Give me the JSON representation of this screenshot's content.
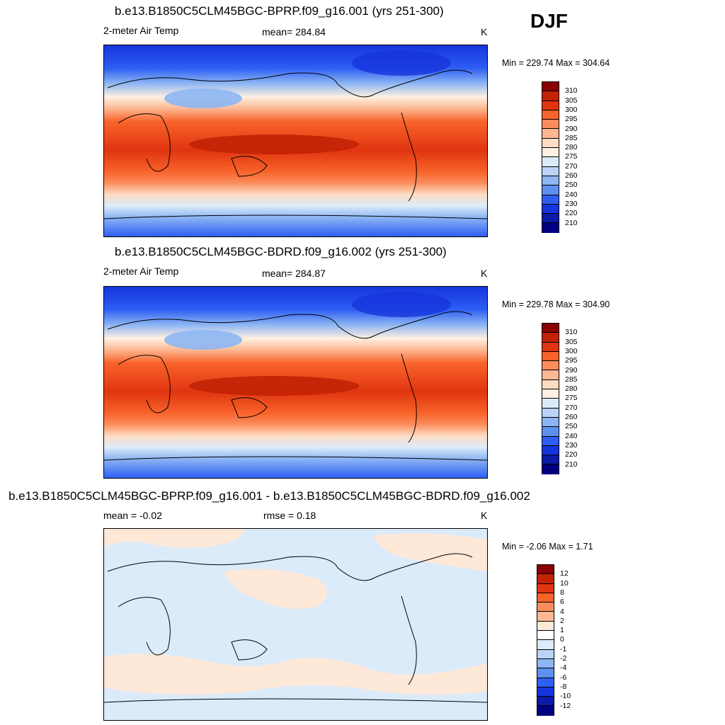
{
  "season": "DJF",
  "colors": {
    "abs": [
      "#8b0000",
      "#c22206",
      "#e03510",
      "#f8632a",
      "#fb8d5d",
      "#fdb893",
      "#fddcc3",
      "#fff0e1",
      "#dcebfa",
      "#b9d4f7",
      "#8db6f3",
      "#5e90f0",
      "#2e5ef3",
      "#1535dc",
      "#0b1aa8",
      "#000080"
    ],
    "diff": [
      "#8b0000",
      "#c22206",
      "#e03510",
      "#f8632a",
      "#fb8d5d",
      "#fdb893",
      "#fee8d8",
      "#ffffff",
      "#dcebfa",
      "#b9d4f7",
      "#8db6f3",
      "#5e90f0",
      "#2e5ef3",
      "#1535dc",
      "#0b1aa8",
      "#000080"
    ]
  },
  "panels": [
    {
      "title": "b.e13.B1850C5CLM45BGC-BPRP.f09_g16.001 (yrs 251-300)",
      "left_label": "2-meter Air Temp",
      "center_label": "mean= 284.84",
      "units": "K",
      "minmax": "Min = 229.74 Max = 304.64",
      "legend_labels": [
        "310",
        "305",
        "300",
        "295",
        "290",
        "285",
        "280",
        "275",
        "270",
        "260",
        "250",
        "240",
        "230",
        "220",
        "210"
      ]
    },
    {
      "title": "b.e13.B1850C5CLM45BGC-BDRD.f09_g16.002 (yrs 251-300)",
      "left_label": "2-meter Air Temp",
      "center_label": "mean= 284.87",
      "units": "K",
      "minmax": "Min = 229.78 Max = 304.90",
      "legend_labels": [
        "310",
        "305",
        "300",
        "295",
        "290",
        "285",
        "280",
        "275",
        "270",
        "260",
        "250",
        "240",
        "230",
        "220",
        "210"
      ]
    },
    {
      "title": "b.e13.B1850C5CLM45BGC-BPRP.f09_g16.001 - b.e13.B1850C5CLM45BGC-BDRD.f09_g16.002",
      "left_label": "mean =  -0.02",
      "center_label": "rmse =   0.18",
      "units": "K",
      "minmax": "Min =  -2.06 Max =   1.71",
      "legend_labels": [
        "12",
        "10",
        "8",
        "6",
        "4",
        "2",
        "1",
        "0",
        "-1",
        "-2",
        "-4",
        "-6",
        "-8",
        "-10",
        "-12"
      ]
    }
  ]
}
